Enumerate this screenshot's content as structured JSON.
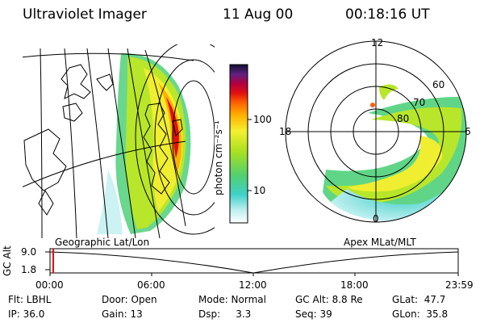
{
  "header": {
    "instrument": "Ultraviolet Imager",
    "date": "11 Aug 00",
    "time": "00:18:16 UT"
  },
  "left_panel": {
    "caption": "Geographic Lat/Lon"
  },
  "right_panel": {
    "caption": "Apex MLat/MLT",
    "mlt_labels": [
      "12",
      "18",
      "6",
      "0"
    ],
    "lat_labels": [
      "60",
      "70",
      "80"
    ]
  },
  "colorbar": {
    "unit_label": "photon cm⁻²s⁻¹",
    "ticks": [
      "100",
      "10"
    ]
  },
  "timeline": {
    "ylabel": "GC Alt",
    "yticks": [
      "9.0",
      "1.8"
    ],
    "xticks": [
      "00:00",
      "06:00",
      "12:00",
      "18:00",
      "23:59"
    ],
    "current_marker": "00:18"
  },
  "info": {
    "flt": "Flt: LBHL",
    "door": "Door: Open",
    "mode": "Mode: Normal",
    "gcalt": "GC Alt: 8.8 Re",
    "glat": "GLat:  47.7",
    "ip": "IP: 36.0",
    "gain": "Gain: 13",
    "dsp": "Dsp:     3.3",
    "seq": "Seq: 39",
    "glon": "GLon:  35.8"
  }
}
